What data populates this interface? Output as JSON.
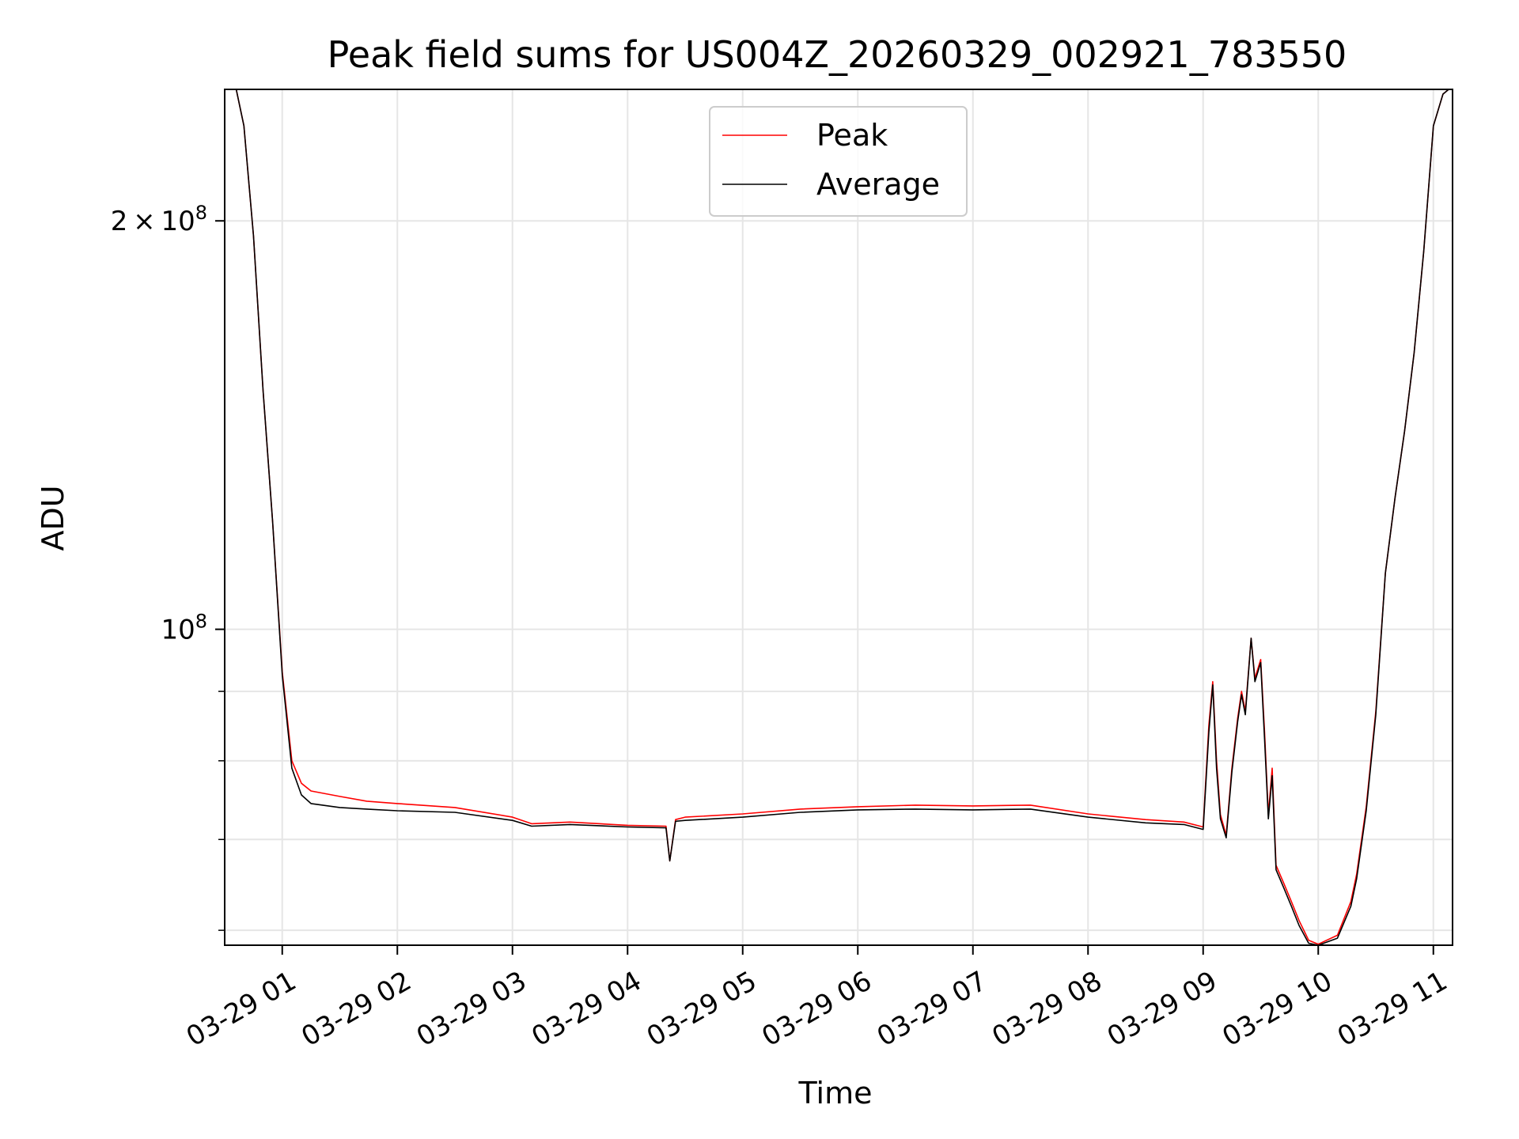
{
  "chart_data": {
    "type": "line",
    "title": "Peak field sums for US004Z_20260329_002921_783550",
    "xlabel": "Time",
    "ylabel": "ADU",
    "y_scale": "log",
    "grid": true,
    "legend_placement": "upper center",
    "xlim": [
      "2026-03-29 00:30",
      "2026-03-29 11:10"
    ],
    "ylim": [
      58500000,
      250000000
    ],
    "x_ticks": [
      "03-29 01",
      "03-29 02",
      "03-29 03",
      "03-29 04",
      "03-29 05",
      "03-29 06",
      "03-29 07",
      "03-29 08",
      "03-29 09",
      "03-29 10",
      "03-29 11"
    ],
    "y_tick_labels": [
      {
        "value": 200000000,
        "mantissa": "2",
        "times": "×",
        "base": "10",
        "exp": "8"
      },
      {
        "value": 100000000,
        "mantissa": "",
        "times": "",
        "base": "10",
        "exp": "8"
      }
    ],
    "y_minor_ticks": [
      60000000,
      70000000,
      80000000,
      90000000
    ],
    "series": [
      {
        "name": "Peak",
        "color": "#ff0000",
        "x": [
          "2026-03-29 00:30",
          "2026-03-29 00:36",
          "2026-03-29 00:40",
          "2026-03-29 00:45",
          "2026-03-29 00:50",
          "2026-03-29 00:55",
          "2026-03-29 01:00",
          "2026-03-29 01:05",
          "2026-03-29 01:10",
          "2026-03-29 01:15",
          "2026-03-29 01:30",
          "2026-03-29 01:44",
          "2026-03-29 02:00",
          "2026-03-29 02:30",
          "2026-03-29 03:00",
          "2026-03-29 03:10",
          "2026-03-29 03:30",
          "2026-03-29 04:00",
          "2026-03-29 04:20",
          "2026-03-29 04:22",
          "2026-03-29 04:25",
          "2026-03-29 04:30",
          "2026-03-29 05:00",
          "2026-03-29 05:30",
          "2026-03-29 06:00",
          "2026-03-29 06:30",
          "2026-03-29 07:00",
          "2026-03-29 07:30",
          "2026-03-29 08:00",
          "2026-03-29 08:30",
          "2026-03-29 08:50",
          "2026-03-29 09:00",
          "2026-03-29 09:03",
          "2026-03-29 09:05",
          "2026-03-29 09:07",
          "2026-03-29 09:09",
          "2026-03-29 09:12",
          "2026-03-29 09:15",
          "2026-03-29 09:18",
          "2026-03-29 09:20",
          "2026-03-29 09:22",
          "2026-03-29 09:25",
          "2026-03-29 09:27",
          "2026-03-29 09:30",
          "2026-03-29 09:32",
          "2026-03-29 09:34",
          "2026-03-29 09:36",
          "2026-03-29 09:38",
          "2026-03-29 09:42",
          "2026-03-29 09:46",
          "2026-03-29 09:50",
          "2026-03-29 09:55",
          "2026-03-29 10:00",
          "2026-03-29 10:10",
          "2026-03-29 10:17",
          "2026-03-29 10:20",
          "2026-03-29 10:25",
          "2026-03-29 10:30",
          "2026-03-29 10:35",
          "2026-03-29 10:40",
          "2026-03-29 10:45",
          "2026-03-29 10:50",
          "2026-03-29 10:55",
          "2026-03-29 11:00",
          "2026-03-29 11:05",
          "2026-03-29 11:08"
        ],
        "y": [
          250000000,
          250000000,
          235000000,
          195000000,
          150000000,
          120000000,
          93000000,
          80000000,
          77000000,
          76000000,
          75300000,
          74700000,
          74400000,
          73900000,
          72700000,
          71900000,
          72100000,
          71700000,
          71600000,
          67500000,
          72400000,
          72700000,
          73100000,
          73700000,
          74000000,
          74200000,
          74100000,
          74200000,
          73100000,
          72400000,
          72100000,
          71500000,
          85000000,
          91500000,
          80000000,
          73000000,
          70500000,
          79000000,
          86000000,
          90000000,
          87000000,
          98500000,
          92000000,
          95000000,
          84000000,
          73000000,
          79000000,
          67000000,
          65000000,
          63000000,
          61000000,
          59000000,
          58600000,
          59500000,
          63000000,
          66000000,
          74000000,
          87000000,
          110000000,
          125000000,
          140000000,
          160000000,
          190000000,
          235000000,
          248000000,
          250000000
        ]
      },
      {
        "name": "Average",
        "color": "#000000",
        "x": [
          "2026-03-29 00:30",
          "2026-03-29 00:36",
          "2026-03-29 00:40",
          "2026-03-29 00:45",
          "2026-03-29 00:50",
          "2026-03-29 00:55",
          "2026-03-29 01:00",
          "2026-03-29 01:05",
          "2026-03-29 01:10",
          "2026-03-29 01:15",
          "2026-03-29 01:30",
          "2026-03-29 01:44",
          "2026-03-29 02:00",
          "2026-03-29 02:30",
          "2026-03-29 03:00",
          "2026-03-29 03:10",
          "2026-03-29 03:30",
          "2026-03-29 04:00",
          "2026-03-29 04:20",
          "2026-03-29 04:22",
          "2026-03-29 04:25",
          "2026-03-29 04:30",
          "2026-03-29 05:00",
          "2026-03-29 05:30",
          "2026-03-29 06:00",
          "2026-03-29 06:30",
          "2026-03-29 07:00",
          "2026-03-29 07:30",
          "2026-03-29 08:00",
          "2026-03-29 08:30",
          "2026-03-29 08:50",
          "2026-03-29 09:00",
          "2026-03-29 09:03",
          "2026-03-29 09:05",
          "2026-03-29 09:07",
          "2026-03-29 09:09",
          "2026-03-29 09:12",
          "2026-03-29 09:15",
          "2026-03-29 09:18",
          "2026-03-29 09:20",
          "2026-03-29 09:22",
          "2026-03-29 09:25",
          "2026-03-29 09:27",
          "2026-03-29 09:30",
          "2026-03-29 09:32",
          "2026-03-29 09:34",
          "2026-03-29 09:36",
          "2026-03-29 09:38",
          "2026-03-29 09:42",
          "2026-03-29 09:46",
          "2026-03-29 09:50",
          "2026-03-29 09:55",
          "2026-03-29 10:00",
          "2026-03-29 10:10",
          "2026-03-29 10:17",
          "2026-03-29 10:20",
          "2026-03-29 10:25",
          "2026-03-29 10:30",
          "2026-03-29 10:35",
          "2026-03-29 10:40",
          "2026-03-29 10:45",
          "2026-03-29 10:50",
          "2026-03-29 10:55",
          "2026-03-29 11:00",
          "2026-03-29 11:05",
          "2026-03-29 11:08"
        ],
        "y": [
          250000000,
          250000000,
          235000000,
          195000000,
          150000000,
          120000000,
          92500000,
          79000000,
          75500000,
          74400000,
          73900000,
          73700000,
          73500000,
          73300000,
          72300000,
          71600000,
          71800000,
          71500000,
          71400000,
          67500000,
          72200000,
          72300000,
          72700000,
          73300000,
          73600000,
          73700000,
          73600000,
          73700000,
          72700000,
          72000000,
          71800000,
          71200000,
          84000000,
          91000000,
          79000000,
          72500000,
          70200000,
          78500000,
          85500000,
          89500000,
          86500000,
          98500000,
          91500000,
          94500000,
          83000000,
          72500000,
          78000000,
          66500000,
          64500000,
          62500000,
          60500000,
          58700000,
          58500000,
          59200000,
          62500000,
          65500000,
          73500000,
          86500000,
          110000000,
          125000000,
          140000000,
          160000000,
          190000000,
          235000000,
          248000000,
          250000000
        ]
      }
    ]
  }
}
